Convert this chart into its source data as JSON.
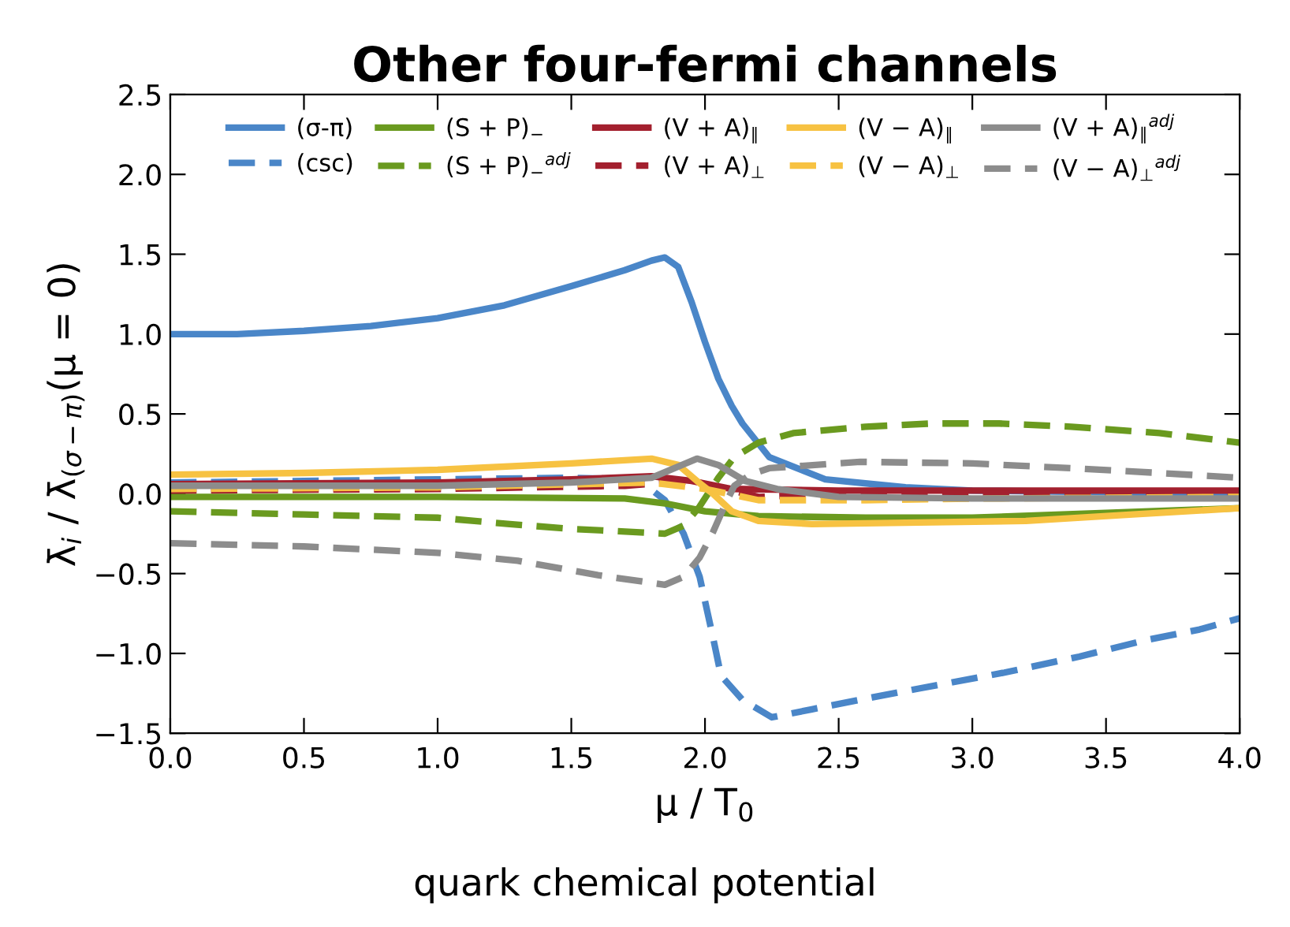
{
  "chart_data": {
    "type": "line",
    "title": "Other four-fermi channels",
    "xlabel": "μ / T$_{0}$",
    "ylabel": "λ̄$_{i}$ / λ̄$_{(σ−π)}$(μ = 0)",
    "annotations": [
      "quark chemical potential"
    ],
    "xlim": [
      0.0,
      4.0
    ],
    "ylim": [
      -1.5,
      2.5
    ],
    "xticks": [
      {
        "value": 0,
        "label": "0.0"
      },
      0.5,
      {
        "value": 1,
        "label": "1.0"
      },
      1.5,
      {
        "value": 2,
        "label": "2.0"
      },
      2.5,
      {
        "value": 3,
        "label": "3.0"
      },
      3.5,
      {
        "value": 4,
        "label": "4.0"
      }
    ],
    "yticks": [
      {
        "value": -1.5,
        "label": "−1.5"
      },
      {
        "value": -1.0,
        "label": "−1.0"
      },
      {
        "value": -0.5,
        "label": "−0.5"
      },
      {
        "value": 0,
        "label": "0.0"
      },
      0.5,
      {
        "value": 1,
        "label": "1.0"
      },
      1.5,
      {
        "value": 2,
        "label": "2.0"
      },
      2.5
    ],
    "grid": false,
    "legend": "top",
    "marker": "none",
    "series": [
      {
        "name": "(σ-π)",
        "color": "#4a86c8",
        "line_style": "solid",
        "x": [
          0,
          0.25,
          0.5,
          0.75,
          1.0,
          1.25,
          1.5,
          1.7,
          1.8,
          1.85,
          1.9,
          1.95,
          2.0,
          2.05,
          2.1,
          2.14,
          2.24,
          2.45,
          2.75,
          3.0,
          3.5,
          4.0
        ],
        "values": [
          1.0,
          1.0,
          1.02,
          1.05,
          1.1,
          1.18,
          1.3,
          1.4,
          1.46,
          1.48,
          1.42,
          1.2,
          0.95,
          0.72,
          0.55,
          0.44,
          0.23,
          0.09,
          0.04,
          0.02,
          0.01,
          0.0
        ]
      },
      {
        "name": "(csc)",
        "color": "#4a86c8",
        "line_style": "dashed",
        "x": [
          0,
          0.5,
          1.0,
          1.5,
          1.75,
          1.85,
          1.92,
          1.98,
          2.03,
          2.06,
          2.14,
          2.25,
          2.4,
          2.58,
          2.8,
          3.12,
          3.4,
          3.64,
          3.85,
          4.0
        ],
        "values": [
          0.07,
          0.08,
          0.09,
          0.1,
          0.09,
          -0.04,
          -0.25,
          -0.52,
          -0.9,
          -1.14,
          -1.29,
          -1.4,
          -1.35,
          -1.29,
          -1.22,
          -1.12,
          -1.02,
          -0.92,
          -0.85,
          -0.78
        ]
      },
      {
        "name": "(S + P)$_{−}$",
        "color": "#6a9a1f",
        "line_style": "solid",
        "x": [
          0,
          1.0,
          1.7,
          1.85,
          2.0,
          2.2,
          2.6,
          3.0,
          3.5,
          4.0
        ],
        "values": [
          -0.02,
          -0.02,
          -0.03,
          -0.06,
          -0.11,
          -0.14,
          -0.15,
          -0.15,
          -0.12,
          -0.09
        ]
      },
      {
        "name": "(S + P)$_{−}$$^{adj}$",
        "color": "#6a9a1f",
        "line_style": "dashed",
        "x": [
          0,
          0.5,
          1.0,
          1.27,
          1.5,
          1.85,
          1.92,
          1.98,
          2.05,
          2.11,
          2.2,
          2.33,
          2.6,
          2.85,
          3.1,
          3.37,
          3.7,
          4.0
        ],
        "values": [
          -0.11,
          -0.13,
          -0.15,
          -0.19,
          -0.22,
          -0.25,
          -0.2,
          -0.08,
          0.1,
          0.23,
          0.32,
          0.38,
          0.42,
          0.44,
          0.44,
          0.42,
          0.38,
          0.32
        ]
      },
      {
        "name": "(V + A)$_{∥}$",
        "color": "#a3202e",
        "line_style": "solid",
        "x": [
          0,
          1.0,
          1.5,
          1.8,
          1.95,
          2.1,
          2.5,
          3.0,
          4.0
        ],
        "values": [
          0.06,
          0.07,
          0.09,
          0.11,
          0.08,
          0.03,
          0.02,
          0.02,
          0.02
        ]
      },
      {
        "name": "(V + A)$_{⊥}$",
        "color": "#a3202e",
        "line_style": "dashed",
        "x": [
          0,
          1.0,
          1.7,
          1.95,
          2.1,
          2.2,
          2.5,
          4.0
        ],
        "values": [
          0.02,
          0.03,
          0.05,
          0.08,
          0.02,
          -0.02,
          0.0,
          0.0
        ]
      },
      {
        "name": "(V − A)$_{∥}$",
        "color": "#f7c242",
        "line_style": "solid",
        "x": [
          0,
          0.5,
          1.0,
          1.5,
          1.8,
          1.9,
          1.97,
          2.03,
          2.1,
          2.2,
          2.4,
          2.8,
          3.2,
          3.6,
          4.0
        ],
        "values": [
          0.12,
          0.13,
          0.15,
          0.19,
          0.22,
          0.18,
          0.08,
          0.0,
          -0.11,
          -0.17,
          -0.19,
          -0.18,
          -0.17,
          -0.13,
          -0.09
        ]
      },
      {
        "name": "(V − A)$_{⊥}$",
        "color": "#f7c242",
        "line_style": "dashed",
        "x": [
          0,
          1.0,
          1.8,
          2.0,
          2.2,
          2.6,
          3.0,
          4.0
        ],
        "values": [
          0.03,
          0.04,
          0.07,
          0.03,
          -0.04,
          -0.04,
          -0.03,
          -0.02
        ]
      },
      {
        "name": "(V + A)$_{∥}$$^{adj}$",
        "color": "#8c8c8c",
        "line_style": "solid",
        "x": [
          0,
          1.0,
          1.5,
          1.8,
          1.9,
          1.97,
          2.05,
          2.15,
          2.27,
          2.5,
          3.0,
          4.0
        ],
        "values": [
          0.05,
          0.05,
          0.07,
          0.1,
          0.17,
          0.22,
          0.18,
          0.08,
          0.03,
          -0.02,
          -0.03,
          -0.03
        ]
      },
      {
        "name": "(V − A)$_{⊥}$$^{adj}$",
        "color": "#8c8c8c",
        "line_style": "dashed",
        "x": [
          0,
          0.5,
          1.0,
          1.3,
          1.6,
          1.85,
          1.92,
          1.98,
          2.03,
          2.08,
          2.11,
          2.17,
          2.24,
          2.58,
          3.0,
          3.37,
          3.7,
          4.0
        ],
        "values": [
          -0.31,
          -0.33,
          -0.37,
          -0.42,
          -0.51,
          -0.57,
          -0.52,
          -0.4,
          -0.24,
          -0.05,
          0.05,
          0.12,
          0.16,
          0.2,
          0.19,
          0.16,
          0.13,
          0.1
        ]
      }
    ]
  }
}
